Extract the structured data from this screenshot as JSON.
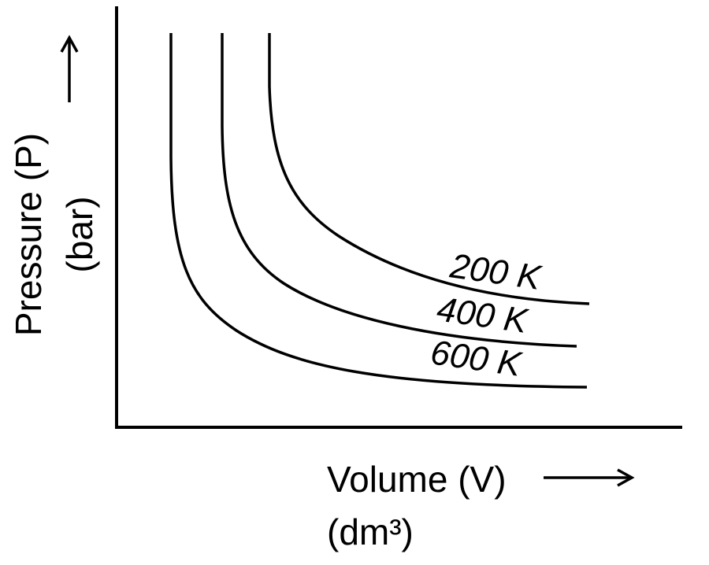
{
  "y_axis": {
    "label": "Pressure (P)",
    "units": "(bar)"
  },
  "x_axis": {
    "label": "Volume (V)",
    "units": "(dm³)"
  },
  "curves": [
    {
      "label": "200 K"
    },
    {
      "label": "400 K"
    },
    {
      "label": "600 K"
    }
  ]
}
